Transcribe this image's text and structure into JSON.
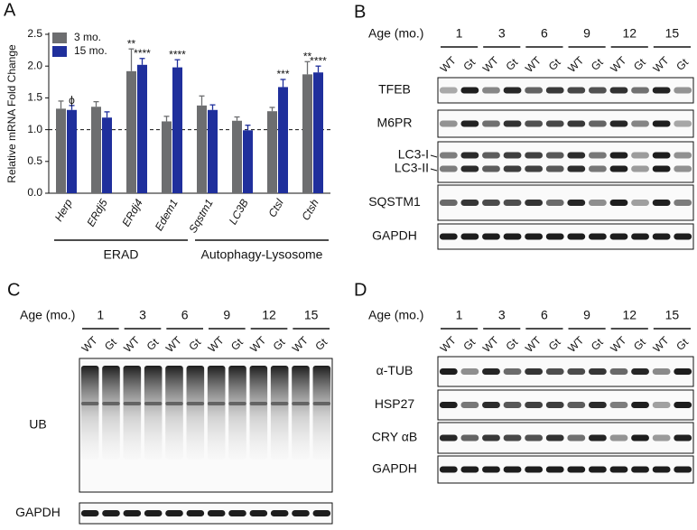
{
  "chart_data": {
    "type": "bar",
    "panel_label": "A",
    "y_label": "Relative mRNA Fold Change",
    "categories": [
      "Herp",
      "ERdj5",
      "ERdj4",
      "Edem1",
      "Sqstm1",
      "LC3B",
      "Ctsl",
      "Ctsh"
    ],
    "series": [
      {
        "name": "3 mo.",
        "color": "#6d6e70",
        "values": [
          1.33,
          1.36,
          1.92,
          1.13,
          1.38,
          1.14,
          1.29,
          1.87
        ],
        "errors": [
          0.12,
          0.08,
          0.35,
          0.08,
          0.15,
          0.06,
          0.06,
          0.2
        ],
        "annotations": [
          null,
          null,
          "**",
          null,
          null,
          null,
          null,
          "**"
        ]
      },
      {
        "name": "15 mo.",
        "color": "#1f2f9c",
        "values": [
          1.31,
          1.19,
          2.02,
          1.98,
          1.31,
          0.99,
          1.67,
          1.9
        ],
        "errors": [
          0.07,
          0.09,
          0.1,
          0.12,
          0.08,
          0.08,
          0.12,
          0.1
        ],
        "annotations": [
          "ϕ",
          null,
          "****",
          "****",
          null,
          null,
          "***",
          "****"
        ]
      }
    ],
    "groups": [
      "ERAD",
      "Autophagy-Lysosome"
    ],
    "hline": 1,
    "ylim": [
      0,
      2.5
    ],
    "yticks": [
      {
        "value": 0,
        "label": "0.0"
      },
      {
        "value": 0.5,
        "label": "0.5"
      },
      {
        "value": 1,
        "label": "1.0"
      },
      {
        "value": 1.5,
        "label": "1.5"
      },
      {
        "value": 2,
        "label": "2.0"
      },
      {
        "value": 2.5,
        "label": "2.5"
      }
    ],
    "legend": "upper left"
  },
  "blots": [
    {
      "panel_label": "B",
      "age_label": "Age (mo.)",
      "ages": [
        "1",
        "3",
        "6",
        "9",
        "12",
        "15"
      ],
      "lanes": [
        "WT",
        "Gt"
      ],
      "rows": [
        [
          "TFEB"
        ],
        [
          "M6PR"
        ],
        [
          "LC3-I",
          "LC3-II"
        ],
        [
          "SQSTM1"
        ],
        [
          "GAPDH"
        ]
      ]
    },
    {
      "panel_label": "C",
      "age_label": "Age (mo.)",
      "ages": [
        "1",
        "3",
        "6",
        "9",
        "12",
        "15"
      ],
      "lanes": [
        "WT",
        "Gt"
      ],
      "rows": [
        [
          "UB"
        ],
        [
          "GAPDH"
        ]
      ]
    },
    {
      "panel_label": "D",
      "age_label": "Age (mo.)",
      "ages": [
        "1",
        "3",
        "6",
        "9",
        "12",
        "15"
      ],
      "lanes": [
        "WT",
        "Gt"
      ],
      "rows": [
        [
          "α-TUB"
        ],
        [
          "HSP27"
        ],
        [
          "CRY αB"
        ],
        [
          "GAPDH"
        ]
      ]
    }
  ]
}
